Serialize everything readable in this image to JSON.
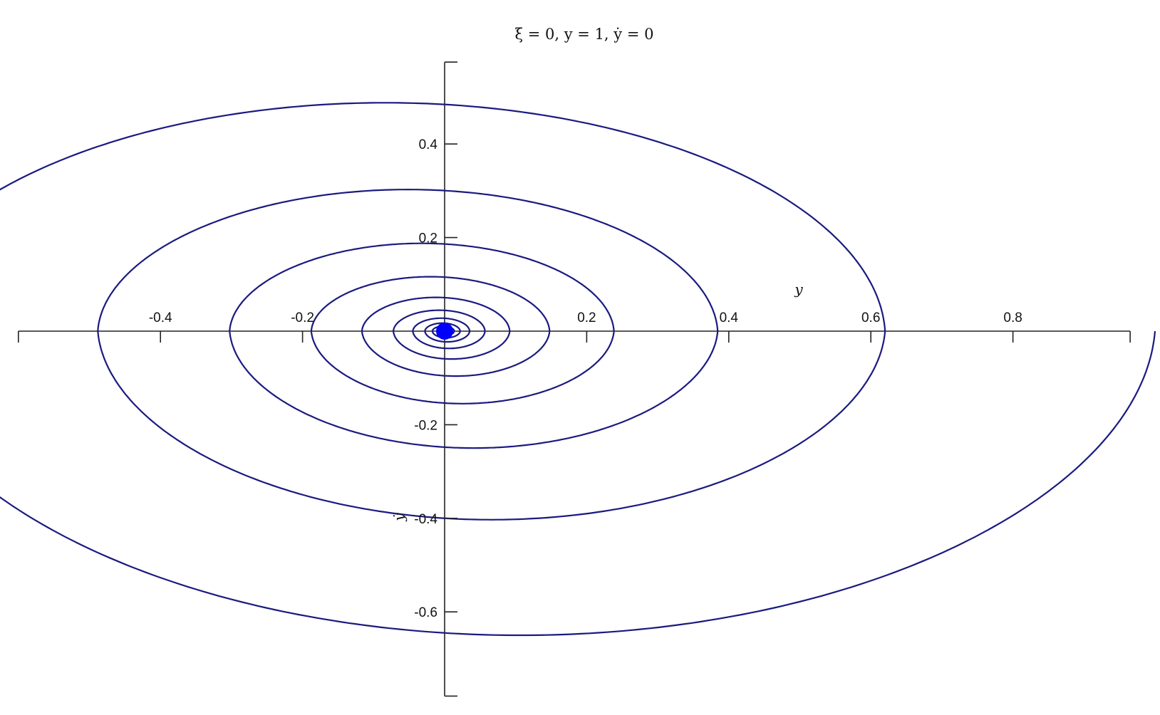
{
  "chart_data": {
    "type": "line",
    "title": "ξ = 0, y = 1, ẏ = 0",
    "xlabel": "y",
    "ylabel": "ẏ",
    "xlim": [
      -0.6,
      1.0
    ],
    "ylim": [
      -0.8,
      0.6
    ],
    "x_ticks": [
      -0.4,
      -0.2,
      0.2,
      0.4,
      0.6,
      0.8
    ],
    "y_ticks": [
      0.4,
      0.2,
      -0.2,
      -0.4,
      -0.6
    ],
    "x_tick_labels": [
      "-0.4",
      "-0.2",
      "0.2",
      "0.4",
      "0.6",
      "0.8"
    ],
    "y_tick_labels": [
      "0.4",
      "0.2",
      "-0.2",
      "-0.4",
      "-0.6"
    ],
    "grid": false,
    "series": [
      {
        "color": "#1a1a80",
        "center_color": "#0000ff",
        "initial_point": [
          1.0,
          0.0
        ],
        "decay_per_revolution": 0.62,
        "extrema_note": "spiral crossings: x-axis at 1.0, -0.5, 0.38, -0.3, 0.26, ...; min ẏ ≈ -0.65, max ẏ ≈ 0.42"
      }
    ]
  }
}
